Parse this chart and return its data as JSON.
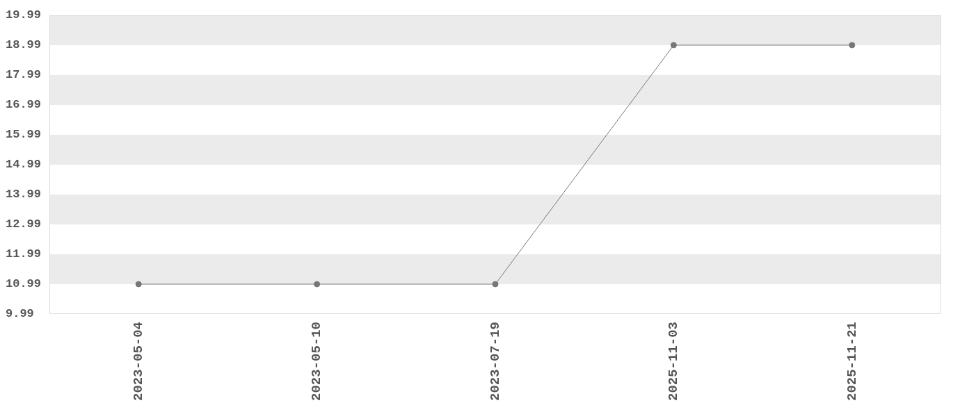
{
  "chart_data": {
    "type": "line",
    "categories": [
      "2023-05-04",
      "2023-05-10",
      "2023-07-19",
      "2025-11-03",
      "2025-11-21"
    ],
    "series": [
      {
        "color": "#777777",
        "values": [
          10.99,
          10.99,
          10.99,
          18.99,
          18.99
        ]
      }
    ],
    "ylim": [
      9.99,
      19.99
    ],
    "yticks": [
      9.99,
      10.99,
      11.99,
      12.99,
      13.99,
      14.99,
      15.99,
      16.99,
      17.99,
      18.99,
      19.99
    ],
    "bands": [
      {
        "axis": "y",
        "from": 10.99,
        "to": 11.99,
        "color": "#ebebeb"
      },
      {
        "axis": "y",
        "from": 12.99,
        "to": 13.99,
        "color": "#ebebeb"
      },
      {
        "axis": "y",
        "from": 14.99,
        "to": 15.99,
        "color": "#ebebeb"
      },
      {
        "axis": "y",
        "from": 16.99,
        "to": 17.99,
        "color": "#ebebeb"
      },
      {
        "axis": "y",
        "from": 18.99,
        "to": 19.99,
        "color": "#ebebeb"
      }
    ],
    "legend": false,
    "marker": "circle",
    "line_style": "solid"
  }
}
